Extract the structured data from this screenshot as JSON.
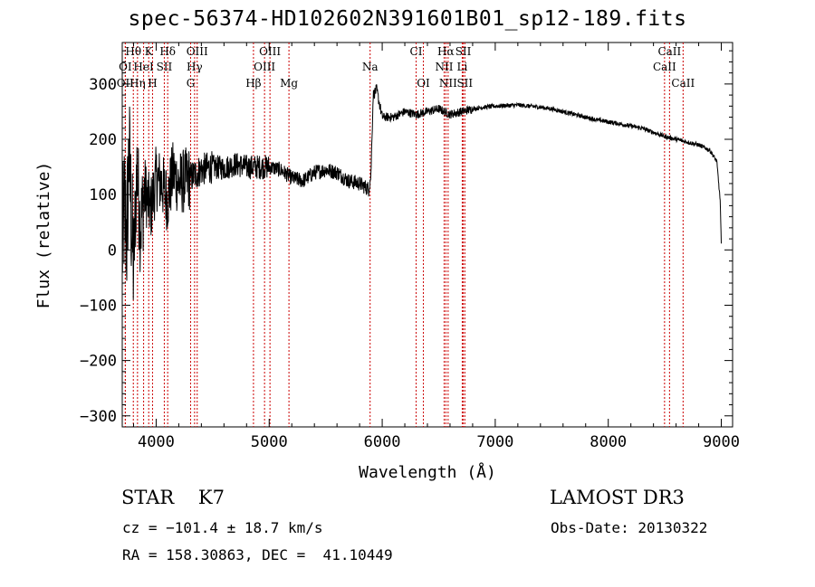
{
  "chart_data": {
    "type": "line",
    "title": "spec-56374-HD102602N391601B01_sp12-189.fits",
    "xlabel": "Wavelength (Å)",
    "ylabel": "Flux (relative)",
    "xlim": [
      3700,
      9100
    ],
    "ylim": [
      -320,
      375
    ],
    "x_ticks": [
      4000,
      5000,
      6000,
      7000,
      8000,
      9000
    ],
    "y_ticks": [
      -300,
      -200,
      -100,
      0,
      100,
      200,
      300
    ],
    "series": [
      {
        "name": "flux",
        "anchors": [
          [
            3700,
            0
          ],
          [
            3720,
            80
          ],
          [
            3740,
            20
          ],
          [
            3760,
            180
          ],
          [
            3780,
            60
          ],
          [
            3800,
            -30
          ],
          [
            3830,
            150
          ],
          [
            3860,
            40
          ],
          [
            3900,
            110
          ],
          [
            3950,
            70
          ],
          [
            4000,
            130
          ],
          [
            4050,
            120
          ],
          [
            4100,
            90
          ],
          [
            4150,
            140
          ],
          [
            4200,
            120
          ],
          [
            4300,
            130
          ],
          [
            4400,
            145
          ],
          [
            4500,
            150
          ],
          [
            4600,
            148
          ],
          [
            4700,
            155
          ],
          [
            4800,
            150
          ],
          [
            4900,
            150
          ],
          [
            5000,
            150
          ],
          [
            5100,
            145
          ],
          [
            5200,
            130
          ],
          [
            5300,
            125
          ],
          [
            5400,
            140
          ],
          [
            5500,
            145
          ],
          [
            5600,
            140
          ],
          [
            5700,
            125
          ],
          [
            5800,
            120
          ],
          [
            5880,
            110
          ],
          [
            5900,
            135
          ],
          [
            5920,
            280
          ],
          [
            5950,
            290
          ],
          [
            6000,
            240
          ],
          [
            6100,
            240
          ],
          [
            6200,
            250
          ],
          [
            6300,
            245
          ],
          [
            6400,
            250
          ],
          [
            6500,
            255
          ],
          [
            6600,
            245
          ],
          [
            6700,
            250
          ],
          [
            6800,
            255
          ],
          [
            6900,
            258
          ],
          [
            7000,
            260
          ],
          [
            7200,
            262
          ],
          [
            7400,
            258
          ],
          [
            7500,
            255
          ],
          [
            7700,
            245
          ],
          [
            7900,
            235
          ],
          [
            8100,
            228
          ],
          [
            8300,
            220
          ],
          [
            8500,
            205
          ],
          [
            8600,
            200
          ],
          [
            8700,
            195
          ],
          [
            8800,
            190
          ],
          [
            8900,
            180
          ],
          [
            8960,
            160
          ],
          [
            8990,
            90
          ],
          [
            9000,
            10
          ]
        ]
      }
    ],
    "lines": [
      {
        "name": "Hθ",
        "wave": 3798,
        "row": 1
      },
      {
        "name": "K",
        "wave": 3934,
        "row": 1
      },
      {
        "name": "Hδ",
        "wave": 4102,
        "row": 1
      },
      {
        "name": "OIII",
        "wave": 4363,
        "row": 1
      },
      {
        "name": "OIII",
        "wave": 5007,
        "row": 1
      },
      {
        "name": "CI",
        "wave": 6300,
        "row": 1
      },
      {
        "name": "Hα",
        "wave": 6563,
        "row": 1
      },
      {
        "name": "SII",
        "wave": 6717,
        "row": 1
      },
      {
        "name": "CaII",
        "wave": 8542,
        "row": 1
      },
      {
        "name": "OI",
        "wave": 3727,
        "row": 2
      },
      {
        "name": "HeI",
        "wave": 3889,
        "row": 2
      },
      {
        "name": "SII",
        "wave": 4072,
        "row": 2
      },
      {
        "name": "Hγ",
        "wave": 4340,
        "row": 2
      },
      {
        "name": "OIII",
        "wave": 4959,
        "row": 2
      },
      {
        "name": "Na",
        "wave": 5893,
        "row": 2
      },
      {
        "name": "NII",
        "wave": 6548,
        "row": 2
      },
      {
        "name": "Li",
        "wave": 6708,
        "row": 2
      },
      {
        "name": "CaII",
        "wave": 8498,
        "row": 2
      },
      {
        "name": "OII",
        "wave": 3727,
        "row": 3
      },
      {
        "name": "Hη",
        "wave": 3835,
        "row": 3
      },
      {
        "name": "H",
        "wave": 3968,
        "row": 3
      },
      {
        "name": "G",
        "wave": 4305,
        "row": 3
      },
      {
        "name": "Hβ",
        "wave": 4861,
        "row": 3
      },
      {
        "name": "Mg",
        "wave": 5175,
        "row": 3
      },
      {
        "name": "OI",
        "wave": 6364,
        "row": 3
      },
      {
        "name": "NII",
        "wave": 6583,
        "row": 3
      },
      {
        "name": "SII",
        "wave": 6731,
        "row": 3
      },
      {
        "name": "CaII",
        "wave": 8662,
        "row": 3
      }
    ],
    "line_color": "#cc0000",
    "spectrum_color": "#000000"
  },
  "info": {
    "class_line": "STAR    K7",
    "survey": "LAMOST DR3",
    "cz": "cz = −101.4 ± 18.7 km/s",
    "obs_date": "Obs-Date: 20130322",
    "radec": "RA = 158.30863, DEC =  41.10449"
  }
}
